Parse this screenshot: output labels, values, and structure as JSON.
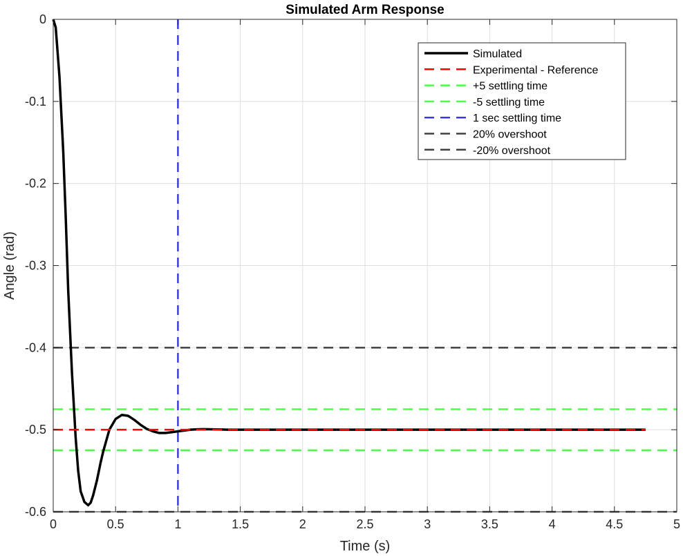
{
  "chart_data": {
    "type": "line",
    "title": "Simulated Arm Response",
    "xlabel": "Time (s)",
    "ylabel": "Angle (rad)",
    "xlim": [
      0,
      5
    ],
    "ylim": [
      -0.6,
      0
    ],
    "grid": true,
    "legend_position": "top-right",
    "x_ticks": [
      {
        "value": 0,
        "label": "0"
      },
      {
        "value": 0.5,
        "label": "0.5"
      },
      {
        "value": 1,
        "label": "1"
      },
      {
        "value": 1.5,
        "label": "1.5"
      },
      {
        "value": 2,
        "label": "2"
      },
      {
        "value": 2.5,
        "label": "2.5"
      },
      {
        "value": 3,
        "label": "3"
      },
      {
        "value": 3.5,
        "label": "3.5"
      },
      {
        "value": 4,
        "label": "4"
      },
      {
        "value": 4.5,
        "label": "4.5"
      },
      {
        "value": 5,
        "label": "5"
      }
    ],
    "y_ticks": [
      {
        "value": 0,
        "label": "0"
      },
      {
        "value": -0.1,
        "label": "-0.1"
      },
      {
        "value": -0.2,
        "label": "-0.2"
      },
      {
        "value": -0.3,
        "label": "-0.3"
      },
      {
        "value": -0.4,
        "label": "-0.4"
      },
      {
        "value": -0.5,
        "label": "-0.5"
      },
      {
        "value": -0.6,
        "label": "-0.6"
      }
    ],
    "series": [
      {
        "name": "Simulated",
        "color": "#000000",
        "style": "solid",
        "x": [
          0,
          0.02,
          0.05,
          0.08,
          0.1,
          0.12,
          0.15,
          0.18,
          0.2,
          0.22,
          0.25,
          0.28,
          0.3,
          0.32,
          0.35,
          0.38,
          0.4,
          0.45,
          0.5,
          0.55,
          0.6,
          0.65,
          0.7,
          0.75,
          0.8,
          0.85,
          0.9,
          0.95,
          1.0,
          1.05,
          1.1,
          1.15,
          1.2,
          1.25,
          1.3,
          1.35,
          1.4,
          1.5,
          1.6,
          1.8,
          2.0,
          2.5,
          3.0,
          3.5,
          4.0,
          4.5,
          4.75
        ],
        "y": [
          0,
          -0.01,
          -0.07,
          -0.16,
          -0.24,
          -0.33,
          -0.43,
          -0.51,
          -0.55,
          -0.575,
          -0.588,
          -0.592,
          -0.589,
          -0.58,
          -0.562,
          -0.54,
          -0.527,
          -0.5,
          -0.487,
          -0.482,
          -0.483,
          -0.488,
          -0.494,
          -0.499,
          -0.502,
          -0.504,
          -0.504,
          -0.503,
          -0.502,
          -0.501,
          -0.5,
          -0.4995,
          -0.4993,
          -0.4994,
          -0.4996,
          -0.4998,
          -0.5,
          -0.5,
          -0.5,
          -0.5,
          -0.5,
          -0.5,
          -0.5,
          -0.5,
          -0.5,
          -0.5,
          -0.5
        ]
      },
      {
        "name": "Experimental - Reference",
        "color": "#ff0000",
        "style": "dashed",
        "x": [
          0,
          4.75
        ],
        "y": [
          -0.5,
          -0.5
        ]
      },
      {
        "name": "+5 settling time",
        "color": "#4dff4d",
        "style": "dashed",
        "x": [
          0,
          5
        ],
        "y": [
          -0.475,
          -0.475
        ]
      },
      {
        "name": "-5 settling time",
        "color": "#4dff4d",
        "style": "dashed",
        "x": [
          0,
          5
        ],
        "y": [
          -0.525,
          -0.525
        ]
      },
      {
        "name": "1 sec settling time",
        "color": "#3b3bdd",
        "style": "dashed",
        "x": [
          1,
          1
        ],
        "y": [
          0,
          -0.6
        ]
      },
      {
        "name": "20% overshoot",
        "color": "#404040",
        "style": "dashed",
        "x": [
          0,
          5
        ],
        "y": [
          -0.4,
          -0.4
        ]
      },
      {
        "name": "-20% overshoot",
        "color": "#404040",
        "style": "dashed",
        "x": [
          0,
          5
        ],
        "y": [
          -0.6,
          -0.6
        ]
      }
    ]
  }
}
